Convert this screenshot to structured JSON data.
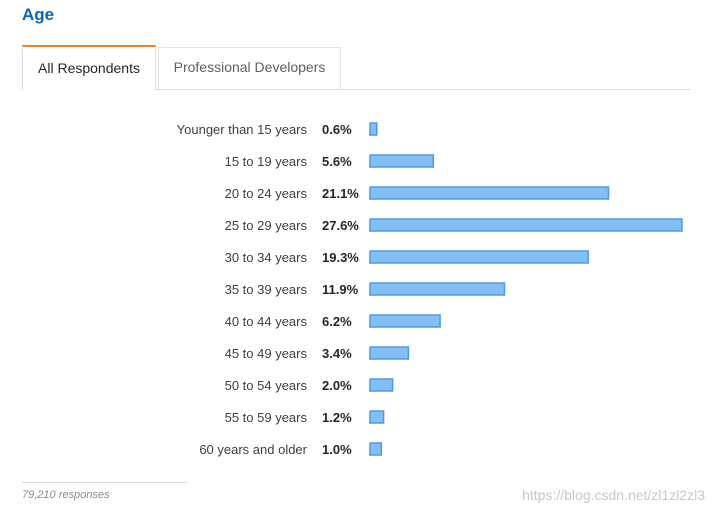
{
  "title": "Age",
  "tabs": [
    {
      "label": "All Respondents",
      "active": true
    },
    {
      "label": "Professional Developers",
      "active": false
    }
  ],
  "chart_data": {
    "type": "bar",
    "orientation": "horizontal",
    "categories": [
      "Younger than 15 years",
      "15 to 19 years",
      "20 to 24 years",
      "25 to 29 years",
      "30 to 34 years",
      "35 to 39 years",
      "40 to 44 years",
      "45 to 49 years",
      "50 to 54 years",
      "55 to 59 years",
      "60 years and older"
    ],
    "values": [
      0.6,
      5.6,
      21.1,
      27.6,
      19.3,
      11.9,
      6.2,
      3.4,
      2.0,
      1.2,
      1.0
    ],
    "value_labels": [
      "0.6%",
      "5.6%",
      "21.1%",
      "27.6%",
      "19.3%",
      "11.9%",
      "6.2%",
      "3.4%",
      "2.0%",
      "1.2%",
      "1.0%"
    ],
    "unit": "%",
    "xlim": [
      0,
      27.6
    ],
    "grid": false,
    "bar_fill": "#84bef5",
    "bar_stroke": "#4d98e6"
  },
  "footer": {
    "responses": "79,210 responses"
  },
  "watermark": "https://blog.csdn.net/zl1zl2zl3"
}
